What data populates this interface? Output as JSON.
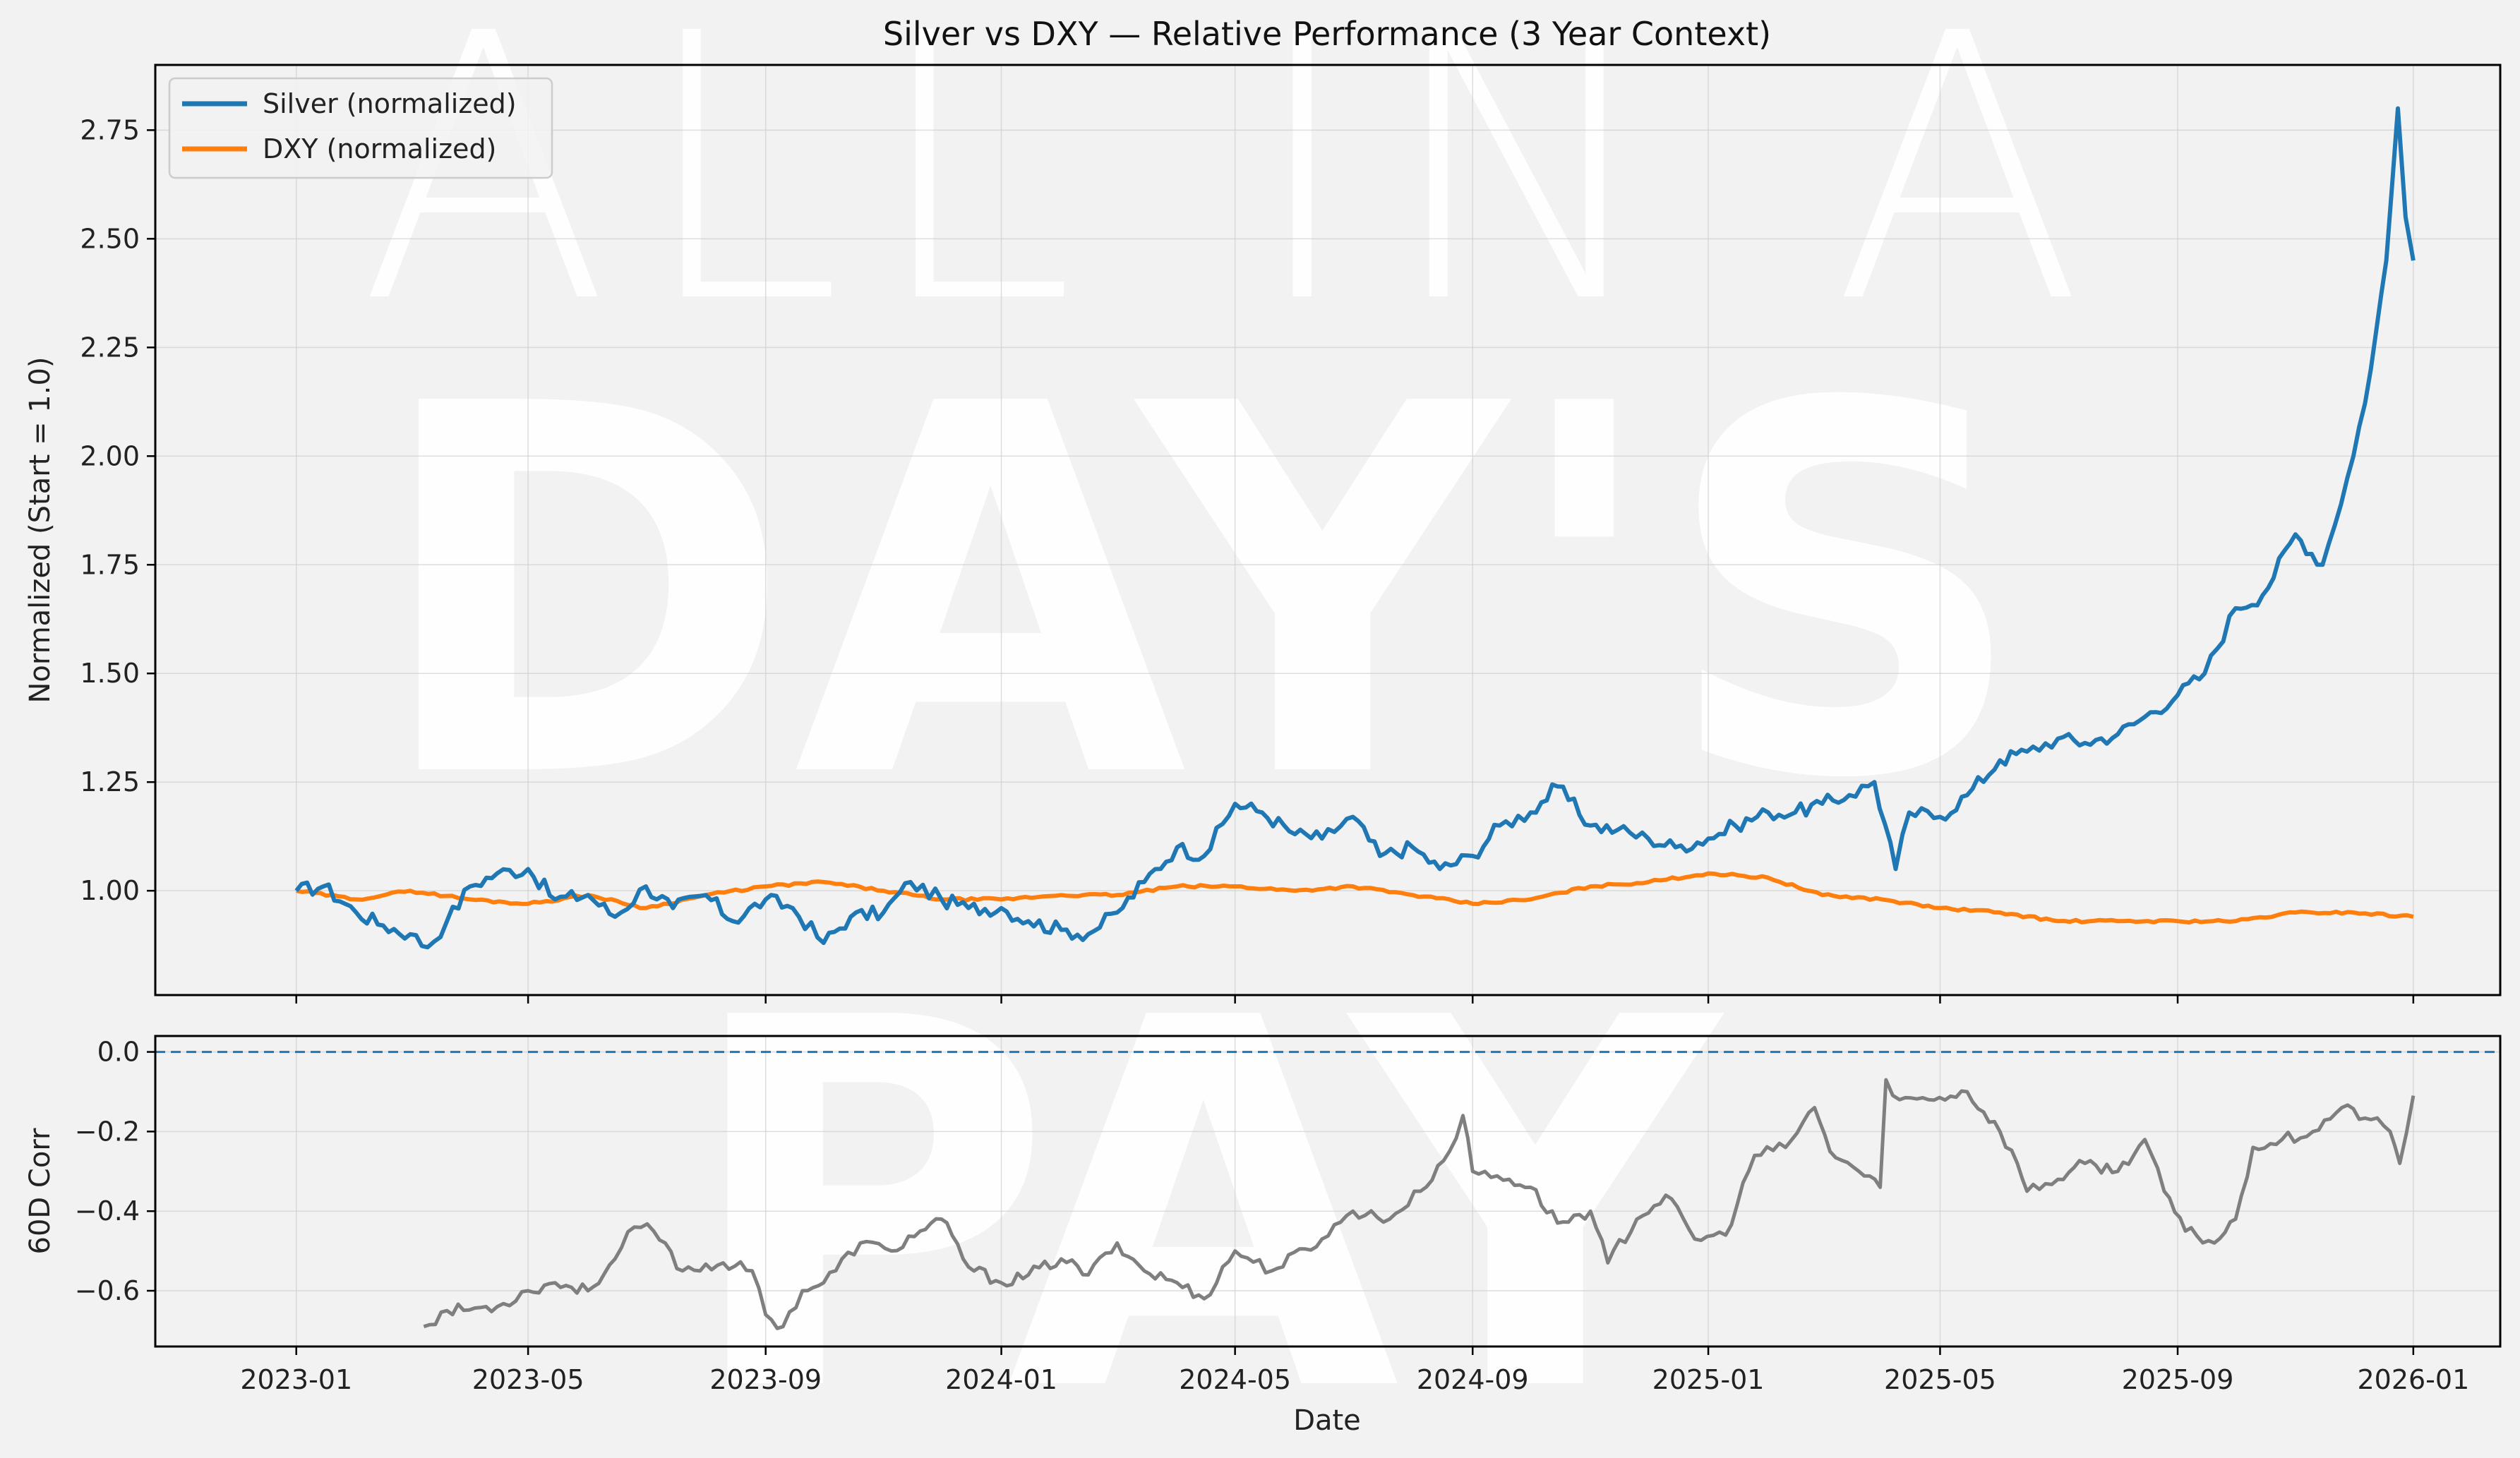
{
  "watermark": {
    "lines": [
      "ALL IN A",
      "DAY'S",
      "PAY"
    ]
  },
  "colors": {
    "silver": "#1f77b4",
    "dxy": "#ff7f0e",
    "corr": "#7f7f7f",
    "zero_line": "#1f77b4",
    "background": "#f2f2f2"
  },
  "chart_data": [
    {
      "type": "line",
      "title": "Silver vs DXY — Relative Performance (3 Year Context)",
      "xlabel": "",
      "ylabel": "Normalized (Start = 1.0)",
      "xlim": [
        "2022-10-20",
        "2026-02-15"
      ],
      "ylim": [
        0.76,
        2.9
      ],
      "yticks": [
        1.0,
        1.25,
        1.5,
        1.75,
        2.0,
        2.25,
        2.5,
        2.75
      ],
      "ytick_labels": [
        "1.00",
        "1.25",
        "1.50",
        "1.75",
        "2.00",
        "2.25",
        "2.50",
        "2.75"
      ],
      "grid": true,
      "legend": {
        "location": "top-left",
        "entries": [
          "Silver (normalized)",
          "DXY (normalized)"
        ]
      },
      "series": [
        {
          "name": "Silver (normalized)",
          "x": [
            "2023-01-01",
            "2023-01-15",
            "2023-02-01",
            "2023-02-15",
            "2023-03-01",
            "2023-03-10",
            "2023-03-20",
            "2023-04-01",
            "2023-04-15",
            "2023-05-01",
            "2023-05-15",
            "2023-06-01",
            "2023-06-15",
            "2023-07-01",
            "2023-07-15",
            "2023-08-01",
            "2023-08-15",
            "2023-09-01",
            "2023-09-15",
            "2023-10-01",
            "2023-10-15",
            "2023-11-01",
            "2023-11-15",
            "2023-12-01",
            "2023-12-15",
            "2024-01-01",
            "2024-01-15",
            "2024-02-01",
            "2024-02-15",
            "2024-03-01",
            "2024-03-15",
            "2024-04-01",
            "2024-04-15",
            "2024-05-01",
            "2024-05-15",
            "2024-06-01",
            "2024-06-15",
            "2024-07-01",
            "2024-07-15",
            "2024-08-01",
            "2024-08-15",
            "2024-09-01",
            "2024-09-15",
            "2024-10-01",
            "2024-10-15",
            "2024-11-01",
            "2024-11-15",
            "2024-12-01",
            "2024-12-15",
            "2025-01-01",
            "2025-01-15",
            "2025-02-01",
            "2025-02-15",
            "2025-03-01",
            "2025-03-15",
            "2025-03-28",
            "2025-04-08",
            "2025-04-15",
            "2025-05-01",
            "2025-05-15",
            "2025-06-01",
            "2025-06-15",
            "2025-07-01",
            "2025-07-15",
            "2025-08-01",
            "2025-08-15",
            "2025-09-01",
            "2025-09-15",
            "2025-10-01",
            "2025-10-15",
            "2025-11-01",
            "2025-11-15",
            "2025-12-01",
            "2025-12-10",
            "2025-12-18",
            "2025-12-24",
            "2025-12-28",
            "2026-01-01"
          ],
          "values": [
            1.0,
            1.01,
            0.95,
            0.92,
            0.9,
            0.87,
            0.93,
            1.01,
            1.04,
            1.05,
            0.98,
            0.99,
            0.94,
            1.01,
            0.96,
            0.99,
            0.93,
            0.98,
            0.96,
            0.88,
            0.94,
            0.95,
            1.02,
            0.98,
            0.96,
            0.96,
            0.93,
            0.91,
            0.9,
            0.95,
            1.02,
            1.1,
            1.08,
            1.2,
            1.18,
            1.13,
            1.12,
            1.17,
            1.08,
            1.1,
            1.05,
            1.08,
            1.15,
            1.18,
            1.24,
            1.15,
            1.14,
            1.12,
            1.1,
            1.12,
            1.15,
            1.18,
            1.18,
            1.2,
            1.22,
            1.25,
            1.05,
            1.18,
            1.17,
            1.22,
            1.3,
            1.32,
            1.35,
            1.34,
            1.36,
            1.4,
            1.45,
            1.5,
            1.65,
            1.68,
            1.82,
            1.75,
            2.0,
            2.2,
            2.45,
            2.8,
            2.55,
            2.45
          ]
        },
        {
          "name": "DXY (normalized)",
          "x": [
            "2023-01-01",
            "2023-02-01",
            "2023-03-01",
            "2023-04-01",
            "2023-05-01",
            "2023-06-01",
            "2023-07-01",
            "2023-08-01",
            "2023-09-01",
            "2023-10-01",
            "2023-11-01",
            "2023-12-01",
            "2024-01-01",
            "2024-02-01",
            "2024-03-01",
            "2024-04-01",
            "2024-05-01",
            "2024-06-01",
            "2024-07-01",
            "2024-08-01",
            "2024-09-01",
            "2024-10-01",
            "2024-11-01",
            "2024-12-01",
            "2025-01-01",
            "2025-02-01",
            "2025-03-01",
            "2025-04-01",
            "2025-05-01",
            "2025-06-01",
            "2025-07-01",
            "2025-08-01",
            "2025-09-01",
            "2025-10-01",
            "2025-11-01",
            "2025-12-01",
            "2026-01-01"
          ],
          "values": [
            1.0,
            0.98,
            1.0,
            0.98,
            0.97,
            0.99,
            0.96,
            0.99,
            1.01,
            1.02,
            1.0,
            0.98,
            0.98,
            0.99,
            0.99,
            1.01,
            1.01,
            1.0,
            1.01,
            0.99,
            0.97,
            0.98,
            1.01,
            1.02,
            1.04,
            1.03,
            0.99,
            0.98,
            0.96,
            0.95,
            0.93,
            0.93,
            0.93,
            0.93,
            0.95,
            0.95,
            0.94
          ]
        }
      ]
    },
    {
      "type": "line",
      "title": "",
      "xlabel": "Date",
      "ylabel": "60D Corr",
      "xlim": [
        "2022-10-20",
        "2026-02-15"
      ],
      "ylim": [
        -0.74,
        0.04
      ],
      "yticks": [
        0.0,
        -0.2,
        -0.4,
        -0.6
      ],
      "ytick_labels": [
        "0.0",
        "−0.2",
        "−0.4",
        "−0.6"
      ],
      "xticks": [
        "2023-01-01",
        "2023-05-01",
        "2023-09-01",
        "2024-01-01",
        "2024-05-01",
        "2024-09-01",
        "2025-01-01",
        "2025-05-01",
        "2025-09-01",
        "2026-01-01"
      ],
      "xtick_labels": [
        "2023-01",
        "2023-05",
        "2023-09",
        "2024-01",
        "2024-05",
        "2024-09",
        "2025-01",
        "2025-05",
        "2025-09",
        "2026-01"
      ],
      "grid": true,
      "reference_line": {
        "y": 0.0,
        "style": "dashed"
      },
      "series": [
        {
          "name": "60D Corr",
          "x": [
            "2023-03-08",
            "2023-03-20",
            "2023-04-15",
            "2023-05-01",
            "2023-05-15",
            "2023-06-01",
            "2023-06-15",
            "2023-06-25",
            "2023-07-05",
            "2023-07-20",
            "2023-08-10",
            "2023-08-25",
            "2023-09-01",
            "2023-09-10",
            "2023-09-20",
            "2023-10-01",
            "2023-10-20",
            "2023-11-05",
            "2023-11-20",
            "2023-12-01",
            "2023-12-15",
            "2024-01-01",
            "2024-01-15",
            "2024-02-01",
            "2024-02-15",
            "2024-03-01",
            "2024-03-15",
            "2024-04-01",
            "2024-04-15",
            "2024-05-01",
            "2024-05-20",
            "2024-06-15",
            "2024-07-01",
            "2024-07-20",
            "2024-08-05",
            "2024-08-20",
            "2024-08-27",
            "2024-09-01",
            "2024-09-20",
            "2024-10-01",
            "2024-10-15",
            "2024-11-01",
            "2024-11-10",
            "2024-11-25",
            "2024-12-10",
            "2024-12-25",
            "2025-01-10",
            "2025-01-25",
            "2025-02-10",
            "2025-02-25",
            "2025-03-05",
            "2025-03-20",
            "2025-03-31",
            "2025-04-03",
            "2025-04-10",
            "2025-04-25",
            "2025-05-15",
            "2025-06-01",
            "2025-06-10",
            "2025-06-15",
            "2025-07-01",
            "2025-07-15",
            "2025-08-01",
            "2025-08-15",
            "2025-08-25",
            "2025-09-05",
            "2025-09-20",
            "2025-10-01",
            "2025-10-10",
            "2025-10-25",
            "2025-11-10",
            "2025-11-25",
            "2025-12-10",
            "2025-12-20",
            "2025-12-25",
            "2026-01-01"
          ],
          "values": [
            -0.69,
            -0.65,
            -0.64,
            -0.6,
            -0.58,
            -0.6,
            -0.52,
            -0.44,
            -0.45,
            -0.55,
            -0.53,
            -0.55,
            -0.66,
            -0.69,
            -0.6,
            -0.58,
            -0.48,
            -0.5,
            -0.45,
            -0.42,
            -0.54,
            -0.58,
            -0.56,
            -0.52,
            -0.56,
            -0.48,
            -0.55,
            -0.58,
            -0.62,
            -0.5,
            -0.55,
            -0.47,
            -0.4,
            -0.42,
            -0.35,
            -0.25,
            -0.16,
            -0.3,
            -0.32,
            -0.34,
            -0.43,
            -0.4,
            -0.53,
            -0.42,
            -0.36,
            -0.47,
            -0.46,
            -0.26,
            -0.24,
            -0.14,
            -0.25,
            -0.3,
            -0.34,
            -0.07,
            -0.12,
            -0.12,
            -0.1,
            -0.2,
            -0.28,
            -0.35,
            -0.32,
            -0.28,
            -0.3,
            -0.22,
            -0.35,
            -0.45,
            -0.48,
            -0.42,
            -0.24,
            -0.22,
            -0.2,
            -0.14,
            -0.17,
            -0.2,
            -0.28,
            -0.11
          ]
        }
      ]
    }
  ]
}
